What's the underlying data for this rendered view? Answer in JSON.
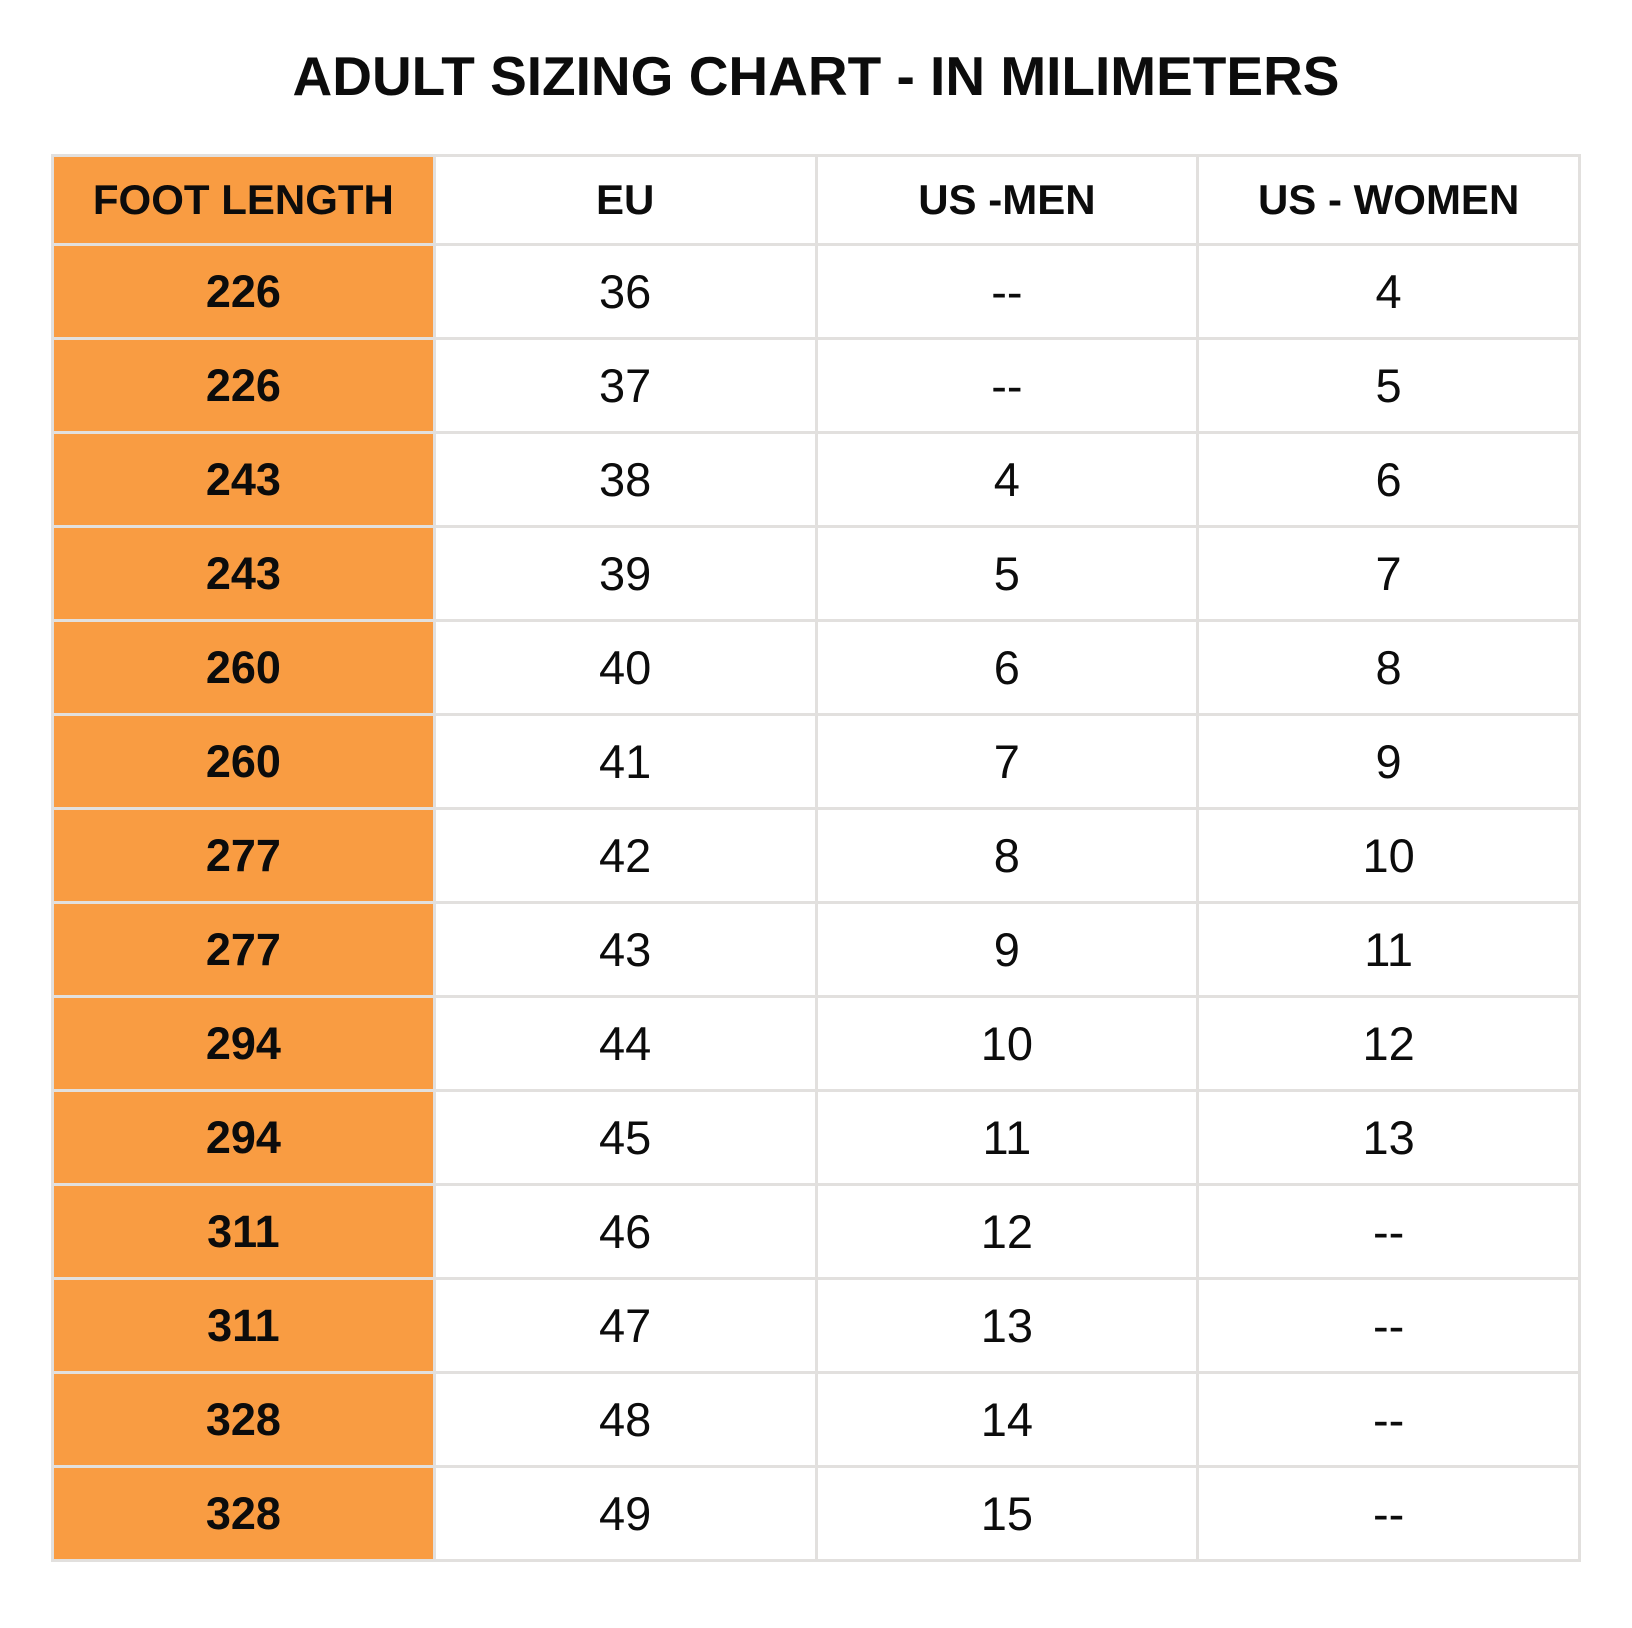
{
  "title": "ADULT SIZING CHART - IN MILIMETERS",
  "colors": {
    "accent_orange": "#f99c42",
    "grid_border": "#e2e0de",
    "text": "#0c0c0c",
    "background": "#ffffff"
  },
  "chart_data": {
    "type": "table",
    "title": "ADULT SIZING CHART - IN MILIMETERS",
    "columns": [
      "FOOT LENGTH",
      "EU",
      "US -MEN",
      "US - WOMEN"
    ],
    "rows": [
      [
        "226",
        "36",
        "--",
        "4"
      ],
      [
        "226",
        "37",
        "--",
        "5"
      ],
      [
        "243",
        "38",
        "4",
        "6"
      ],
      [
        "243",
        "39",
        "5",
        "7"
      ],
      [
        "260",
        "40",
        "6",
        "8"
      ],
      [
        "260",
        "41",
        "7",
        "9"
      ],
      [
        "277",
        "42",
        "8",
        "10"
      ],
      [
        "277",
        "43",
        "9",
        "11"
      ],
      [
        "294",
        "44",
        "10",
        "12"
      ],
      [
        "294",
        "45",
        "11",
        "13"
      ],
      [
        "311",
        "46",
        "12",
        "--"
      ],
      [
        "311",
        "47",
        "13",
        "--"
      ],
      [
        "328",
        "48",
        "14",
        "--"
      ],
      [
        "328",
        "49",
        "15",
        "--"
      ]
    ],
    "layout": {
      "header_column_highlighted": "FOOT LENGTH",
      "highlight_color": "#f99c42",
      "grid": true
    }
  }
}
